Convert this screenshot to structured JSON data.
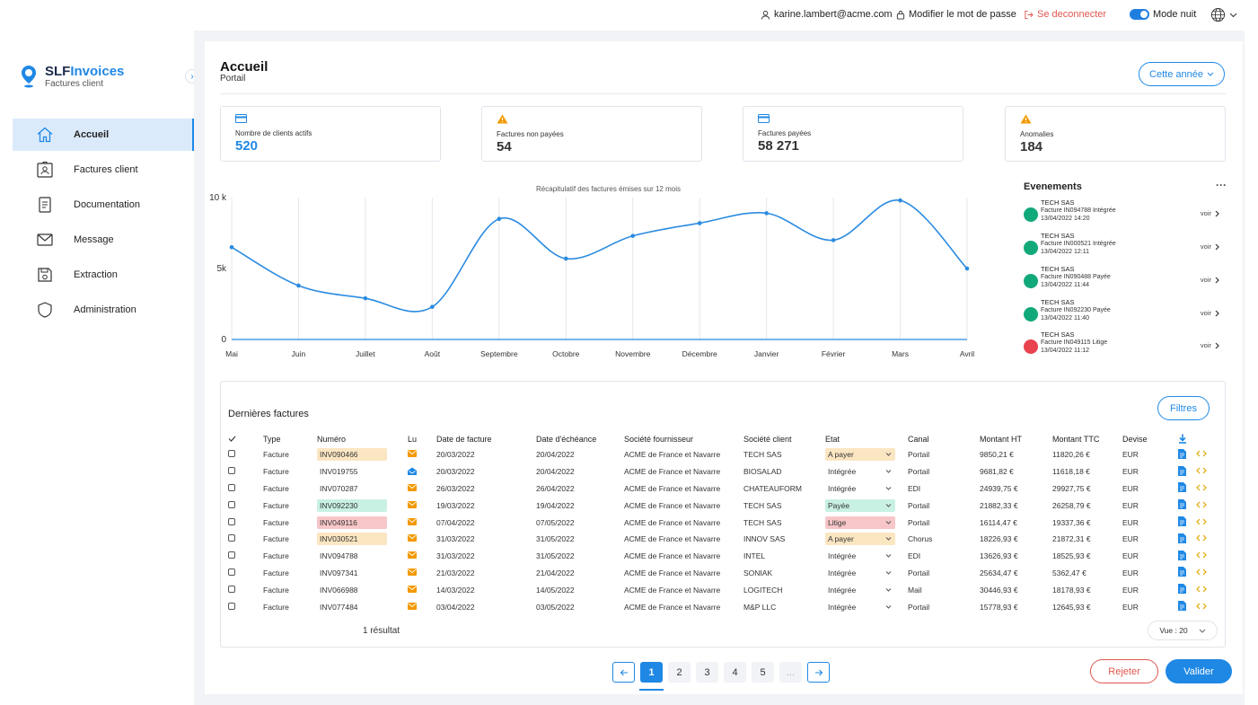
{
  "topbar": {
    "user_email": "karine.lambert@acme.com",
    "change_password": "Modifier le mot de passe",
    "logout": "Se deconnecter",
    "night_mode": "Mode nuit"
  },
  "brand": {
    "name_a": "SLF",
    "name_b": "Invoices",
    "subtitle": "Factures client"
  },
  "sidebar": {
    "items": [
      {
        "label": "Accueil",
        "icon": "home-icon",
        "active": true
      },
      {
        "label": "Factures client",
        "icon": "user-card-icon"
      },
      {
        "label": "Documentation",
        "icon": "document-icon"
      },
      {
        "label": "Message",
        "icon": "envelope-icon"
      },
      {
        "label": "Extraction",
        "icon": "floppy-icon"
      },
      {
        "label": "Administration",
        "icon": "shield-icon"
      }
    ]
  },
  "header": {
    "title": "Accueil",
    "subtitle": "Portail",
    "period_button": "Cette année"
  },
  "kpis": [
    {
      "label": "Nombre de clients actifs",
      "value": "520",
      "icon": "card-icon",
      "color": "#1f88e5"
    },
    {
      "label": "Factures non payées",
      "value": "54",
      "icon": "warning-icon",
      "color": "#f29900"
    },
    {
      "label": "Factures payées",
      "value": "58 271",
      "icon": "card-icon",
      "color": "#1f88e5"
    },
    {
      "label": "Anomalies",
      "value": "184",
      "icon": "warning-icon",
      "color": "#f29900"
    }
  ],
  "chart_data": {
    "type": "line",
    "title": "Récapitulatif des factures émises sur 12 mois",
    "categories": [
      "Mai",
      "Juin",
      "Juillet",
      "Août",
      "Septembre",
      "Octobre",
      "Novembre",
      "Décembre",
      "Janvier",
      "Février",
      "Mars",
      "Avril"
    ],
    "values": [
      6500,
      3800,
      2900,
      2300,
      8500,
      5700,
      7300,
      8200,
      8900,
      7000,
      9800,
      5000
    ],
    "ylim": [
      0,
      10000
    ],
    "yticks": [
      0,
      5000,
      10000
    ],
    "ytick_labels": [
      "0",
      "5k",
      "10 k"
    ],
    "grid": "vertical",
    "color": "#2b8be0"
  },
  "events": {
    "title": "Evenements",
    "more": "···",
    "link_label": "voir",
    "items": [
      {
        "company": "TECH  SAS",
        "text": "Facture IN094788 Intégrée",
        "date": "13/04/2022 14:20",
        "color": "#12a97a"
      },
      {
        "company": "TECH  SAS",
        "text": "Facture IN000521 Intégrée",
        "date": "13/04/2022 12:11",
        "color": "#12a97a"
      },
      {
        "company": "TECH  SAS",
        "text": "Facture IN090488 Payée",
        "date": "13/04/2022 11:44",
        "color": "#12a97a"
      },
      {
        "company": "TECH  SAS",
        "text": "Facture IN092230 Payée",
        "date": "13/04/2022 11:40",
        "color": "#12a97a"
      },
      {
        "company": "TECH  SAS",
        "text": "Facture IN049115 Litige",
        "date": "13/04/2022 11:12",
        "color": "#e8434f"
      }
    ]
  },
  "table": {
    "title": "Dernières factures",
    "filter_button": "Filtres",
    "columns": [
      "Type",
      "Numéro",
      "Lu",
      "Date de facture",
      "Date d'échéance",
      "Société fournisseur",
      "Société client",
      "Etat",
      "Canal",
      "Montant HT",
      "Montant TTC",
      "Devise"
    ],
    "rows": [
      {
        "type": "Facture",
        "num": "INV090466",
        "num_color": "#fbe6c2",
        "read": false,
        "date": "20/03/2022",
        "due": "20/04/2022",
        "supplier": "ACME de France et Navarre",
        "client": "TECH  SAS",
        "state": "A payer",
        "state_color": "#fbe6c2",
        "canal": "Portail",
        "ht": "9850,21 €",
        "ttc": "11820,26 €",
        "cur": "EUR"
      },
      {
        "type": "Facture",
        "num": "INV019755",
        "num_color": "",
        "read": true,
        "date": "20/03/2022",
        "due": "20/04/2022",
        "supplier": "ACME de France et Navarre",
        "client": "BIOSALAD",
        "state": "Intégrée",
        "state_color": "",
        "canal": "Portail",
        "ht": "9681,82 €",
        "ttc": "11618,18 €",
        "cur": "EUR"
      },
      {
        "type": "Facture",
        "num": "INV070287",
        "num_color": "",
        "read": false,
        "date": "26/03/2022",
        "due": "26/04/2022",
        "supplier": "ACME de France et Navarre",
        "client": "CHATEAUFORM",
        "state": "Intégrée",
        "state_color": "",
        "canal": "EDI",
        "ht": "24939,75 €",
        "ttc": "29927,75 €",
        "cur": "EUR"
      },
      {
        "type": "Facture",
        "num": "INV092230",
        "num_color": "#c8f0e3",
        "read": false,
        "date": "19/03/2022",
        "due": "19/04/2022",
        "supplier": "ACME de France et Navarre",
        "client": "TECH  SAS",
        "state": "Payée",
        "state_color": "#c8f0e3",
        "canal": "Portail",
        "ht": "21882,33 €",
        "ttc": "26258,79 €",
        "cur": "EUR"
      },
      {
        "type": "Facture",
        "num": "INV049116",
        "num_color": "#f7c6c8",
        "read": false,
        "date": "07/04/2022",
        "due": "07/05/2022",
        "supplier": "ACME de France et Navarre",
        "client": "TECH  SAS",
        "state": "Litige",
        "state_color": "#f7c6c8",
        "canal": "Portail",
        "ht": "16114,47 €",
        "ttc": "19337,36 €",
        "cur": "EUR"
      },
      {
        "type": "Facture",
        "num": "INV030521",
        "num_color": "#fbe6c2",
        "read": false,
        "date": "31/03/2022",
        "due": "31/05/2022",
        "supplier": "ACME de France et Navarre",
        "client": "INNOV SAS",
        "state": "A payer",
        "state_color": "#fbe6c2",
        "canal": "Chorus",
        "ht": "18226,93 €",
        "ttc": "21872,31 €",
        "cur": "EUR"
      },
      {
        "type": "Facture",
        "num": "INV094788",
        "num_color": "",
        "read": false,
        "date": "31/03/2022",
        "due": "31/05/2022",
        "supplier": "ACME de France et Navarre",
        "client": "INTEL",
        "state": "Intégrée",
        "state_color": "",
        "canal": "EDI",
        "ht": "13626,93 €",
        "ttc": "18525,93 €",
        "cur": "EUR"
      },
      {
        "type": "Facture",
        "num": "INV097341",
        "num_color": "",
        "read": false,
        "date": "21/03/2022",
        "due": "21/04/2022",
        "supplier": "ACME de France et Navarre",
        "client": "SONIAK",
        "state": "Intégrée",
        "state_color": "",
        "canal": "Portail",
        "ht": "25634,47 €",
        "ttc": "5362,47 €",
        "cur": "EUR"
      },
      {
        "type": "Facture",
        "num": "INV066988",
        "num_color": "",
        "read": false,
        "date": "14/03/2022",
        "due": "14/05/2022",
        "supplier": "ACME de France et Navarre",
        "client": "LOGITECH",
        "state": "Intégrée",
        "state_color": "",
        "canal": "Mail",
        "ht": "30446,93 €",
        "ttc": "18178,93 €",
        "cur": "EUR"
      },
      {
        "type": "Facture",
        "num": "INV077484",
        "num_color": "",
        "read": false,
        "date": "03/04/2022",
        "due": "03/05/2022",
        "supplier": "ACME de France et Navarre",
        "client": "M&P LLC",
        "state": "Intégrée",
        "state_color": "",
        "canal": "Portail",
        "ht": "15778,93 €",
        "ttc": "12645,93 €",
        "cur": "EUR"
      }
    ],
    "result_count": "1 résultat",
    "view_select": "Vue : 20"
  },
  "pagination": {
    "pages": [
      "1",
      "2",
      "3",
      "4",
      "5",
      "..."
    ],
    "current": "1"
  },
  "actions": {
    "reject": "Rejeter",
    "validate": "Valider"
  }
}
